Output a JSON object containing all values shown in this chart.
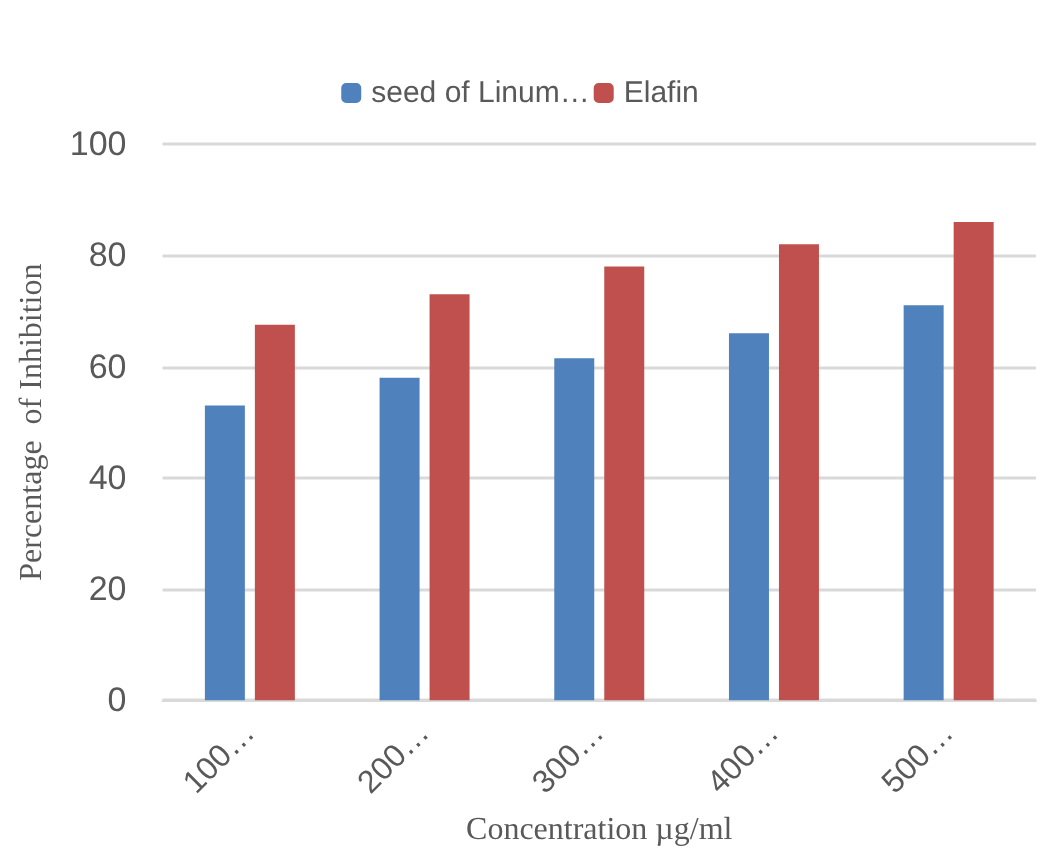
{
  "chart_data": {
    "type": "bar",
    "xlabel": "Concentration µg/ml",
    "ylabel": "Percentage  of Inhibition",
    "categories": [
      "100…",
      "200…",
      "300…",
      "400…",
      "500…"
    ],
    "series": [
      {
        "name": "seed of Linum…",
        "color": "#4f81bd",
        "values": [
          53,
          58,
          61.5,
          66,
          71
        ]
      },
      {
        "name": "Elafin",
        "color": "#c0504d",
        "values": [
          67.5,
          73,
          78,
          82,
          86
        ]
      }
    ],
    "ylim": [
      0,
      100
    ],
    "yticks": [
      0,
      20,
      40,
      60,
      80,
      100
    ],
    "grid": "y",
    "legend": "top"
  }
}
